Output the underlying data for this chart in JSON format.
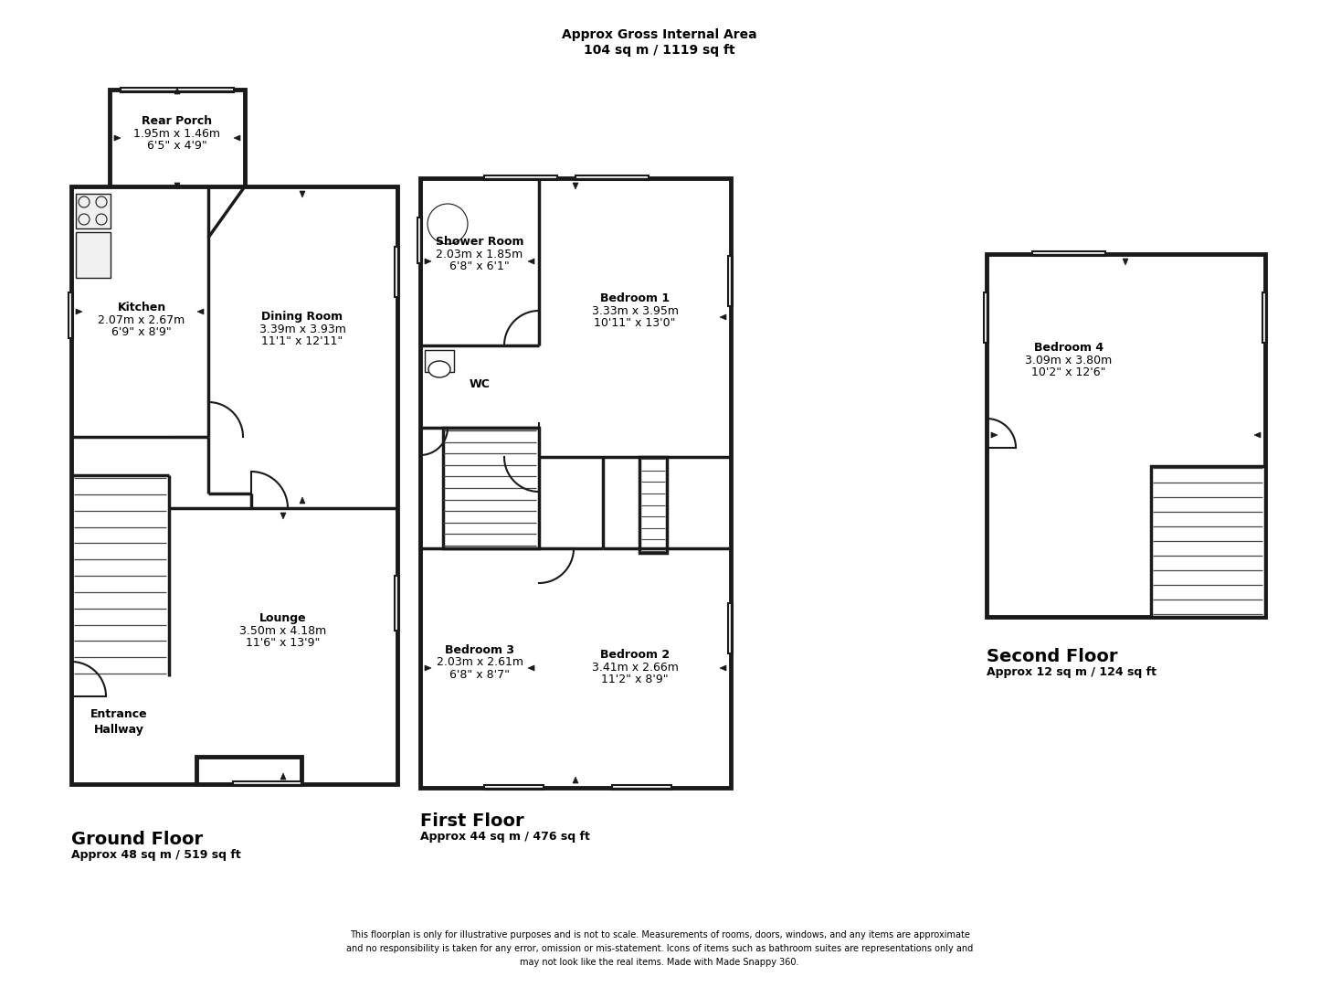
{
  "title_top_line1": "Approx Gross Internal Area",
  "title_top_line2": "104 sq m / 1119 sq ft",
  "ground_floor_label": "Ground Floor",
  "ground_floor_area": "Approx 48 sq m / 519 sq ft",
  "first_floor_label": "First Floor",
  "first_floor_area": "Approx 44 sq m / 476 sq ft",
  "second_floor_label": "Second Floor",
  "second_floor_area": "Approx 12 sq m / 124 sq ft",
  "disclaimer": "This floorplan is only for illustrative purposes and is not to scale. Measurements of rooms, doors, windows, and any items are approximate\nand no responsibility is taken for any error, omission or mis-statement. Icons of items such as bathroom suites are representations only and\nmay not look like the real items. Made with Made Snappy 360.",
  "wall_color": "#1a1a1a",
  "bg_color": "#ffffff",
  "rooms": {
    "rear_porch": {
      "label": "Rear Porch",
      "dim1": "1.95m x 1.46m",
      "dim2": "6'5\" x 4'9\""
    },
    "kitchen": {
      "label": "Kitchen",
      "dim1": "2.07m x 2.67m",
      "dim2": "6'9\" x 8'9\""
    },
    "dining_room": {
      "label": "Dining Room",
      "dim1": "3.39m x 3.93m",
      "dim2": "11'1\" x 12'11\""
    },
    "lounge": {
      "label": "Lounge",
      "dim1": "3.50m x 4.18m",
      "dim2": "11'6\" x 13'9\""
    },
    "entrance_hallway": {
      "label": "Entrance\nHallway"
    },
    "shower_room": {
      "label": "Shower Room",
      "dim1": "2.03m x 1.85m",
      "dim2": "6'8\" x 6'1\""
    },
    "wc": {
      "label": "WC"
    },
    "bedroom1": {
      "label": "Bedroom 1",
      "dim1": "3.33m x 3.95m",
      "dim2": "10'11\" x 13'0\""
    },
    "bedroom2": {
      "label": "Bedroom 2",
      "dim1": "3.41m x 2.66m",
      "dim2": "11'2\" x 8'9\""
    },
    "bedroom3": {
      "label": "Bedroom 3",
      "dim1": "2.03m x 2.61m",
      "dim2": "6'8\" x 8'7\""
    },
    "bedroom4": {
      "label": "Bedroom 4",
      "dim1": "3.09m x 3.80m",
      "dim2": "10'2\" x 12'6\""
    }
  }
}
